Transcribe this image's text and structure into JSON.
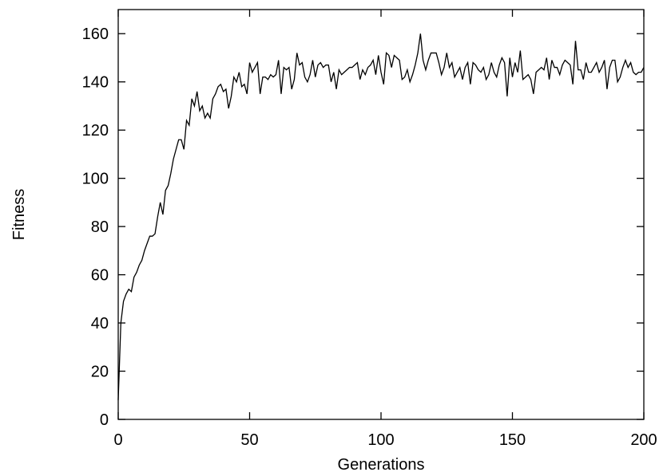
{
  "chart_data": {
    "type": "line",
    "title": "",
    "xlabel": "Generations",
    "ylabel": "Fitness",
    "xlim": [
      0,
      200
    ],
    "ylim": [
      0,
      170
    ],
    "xticks": [
      0,
      50,
      100,
      150,
      200
    ],
    "yticks": [
      0,
      20,
      40,
      60,
      80,
      100,
      120,
      140,
      160
    ],
    "grid": false,
    "legend": "none",
    "line_color": "#000000",
    "series": [
      {
        "x": [
          0,
          1,
          2,
          3,
          4,
          5,
          6,
          7,
          8,
          9,
          10,
          11,
          12,
          13,
          14,
          15,
          16,
          17,
          18,
          19,
          20,
          21,
          22,
          23,
          24,
          25,
          26,
          27,
          28,
          29,
          30,
          31,
          32,
          33,
          34,
          35,
          36,
          37,
          38,
          39,
          40,
          41,
          42,
          43,
          44,
          45,
          46,
          47,
          48,
          49,
          50,
          51,
          52,
          53,
          54,
          55,
          56,
          57,
          58,
          59,
          60,
          61,
          62,
          63,
          64,
          65,
          66,
          67,
          68,
          69,
          70,
          71,
          72,
          73,
          74,
          75,
          76,
          77,
          78,
          79,
          80,
          81,
          82,
          83,
          84,
          85,
          86,
          87,
          88,
          89,
          90,
          91,
          92,
          93,
          94,
          95,
          96,
          97,
          98,
          99,
          100,
          101,
          102,
          103,
          104,
          105,
          106,
          107,
          108,
          109,
          110,
          111,
          112,
          113,
          114,
          115,
          116,
          117,
          118,
          119,
          120,
          121,
          122,
          123,
          124,
          125,
          126,
          127,
          128,
          129,
          130,
          131,
          132,
          133,
          134,
          135,
          136,
          137,
          138,
          139,
          140,
          141,
          142,
          143,
          144,
          145,
          146,
          147,
          148,
          149,
          150,
          151,
          152,
          153,
          154,
          155,
          156,
          157,
          158,
          159,
          160,
          161,
          162,
          163,
          164,
          165,
          166,
          167,
          168,
          169,
          170,
          171,
          172,
          173,
          174,
          175,
          176,
          177,
          178,
          179,
          180,
          181,
          182,
          183,
          184,
          185,
          186,
          187,
          188,
          189,
          190,
          191,
          192,
          193,
          194,
          195,
          196,
          197,
          198,
          199,
          200
        ],
        "values": [
          8,
          40,
          49,
          52,
          54,
          53,
          59,
          61,
          64,
          66,
          70,
          73,
          76,
          76,
          77,
          84,
          90,
          85,
          95,
          97,
          102,
          108,
          112,
          116,
          116,
          112,
          124,
          122,
          133,
          130,
          136,
          128,
          130,
          125,
          127,
          125,
          133,
          135,
          138,
          139,
          136,
          137,
          129,
          134,
          142,
          140,
          144,
          138,
          139,
          135,
          148,
          144,
          146,
          148,
          135,
          142,
          142,
          141,
          143,
          142,
          143,
          149,
          135,
          146,
          145,
          146,
          137,
          141,
          152,
          147,
          148,
          142,
          140,
          143,
          149,
          142,
          147,
          148,
          146,
          147,
          147,
          140,
          144,
          137,
          145,
          143,
          144,
          145,
          146,
          146,
          147,
          148,
          141,
          145,
          143,
          146,
          147,
          149,
          143,
          151,
          144,
          139,
          152,
          151,
          146,
          151,
          150,
          149,
          141,
          142,
          145,
          140,
          143,
          147,
          152,
          160,
          149,
          145,
          149,
          152,
          152,
          152,
          148,
          143,
          146,
          152,
          146,
          148,
          142,
          144,
          146,
          141,
          146,
          148,
          139,
          148,
          147,
          145,
          144,
          146,
          141,
          143,
          148,
          144,
          142,
          147,
          150,
          148,
          134,
          150,
          142,
          148,
          144,
          153,
          141,
          142,
          143,
          141,
          135,
          144,
          145,
          146,
          145,
          150,
          141,
          149,
          146,
          146,
          143,
          147,
          149,
          148,
          147,
          139,
          157,
          145,
          145,
          141,
          148,
          144,
          144,
          146,
          148,
          144,
          146,
          149,
          137,
          146,
          149,
          149,
          140,
          142,
          146,
          149,
          146,
          148,
          144,
          143,
          144,
          144,
          146
        ]
      }
    ]
  }
}
